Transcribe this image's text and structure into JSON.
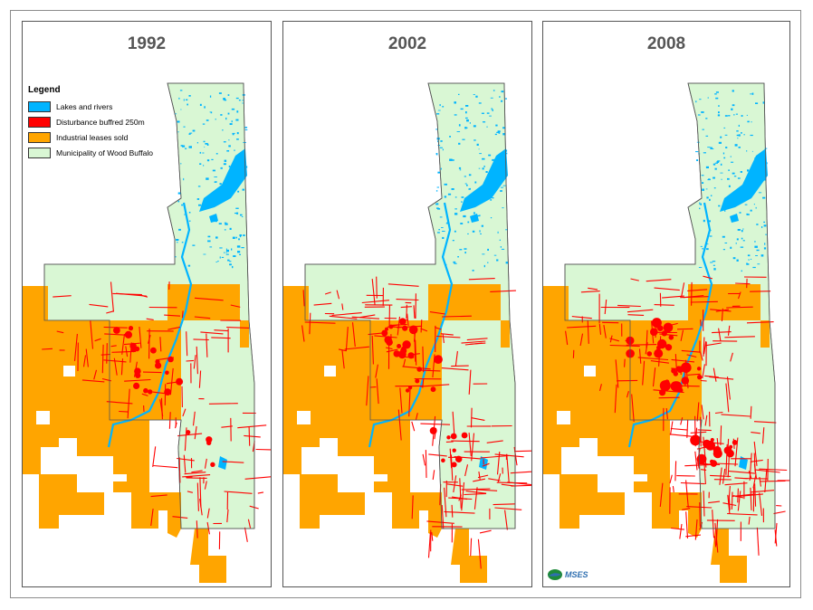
{
  "panels": [
    {
      "year": "1992",
      "density": 0.55
    },
    {
      "year": "2002",
      "density": 0.75
    },
    {
      "year": "2008",
      "density": 1.0
    }
  ],
  "legend": {
    "title": "Legend",
    "items": [
      {
        "label": "Lakes and rivers",
        "color": "#00b4ff"
      },
      {
        "label": "Disturbance buffred 250m",
        "color": "#ff0000"
      },
      {
        "label": "Industrial leases sold",
        "color": "#ffa500"
      },
      {
        "label": "Municipality of Wood Buffalo",
        "color": "#d9f7d4"
      }
    ]
  },
  "logo": {
    "text": "MSES",
    "icon": "mses-logo-icon"
  },
  "colors": {
    "lakes": "#00b4ff",
    "disturbance": "#ff0000",
    "leases": "#ffa500",
    "municipality": "#d9f7d4",
    "border": "#555555"
  }
}
